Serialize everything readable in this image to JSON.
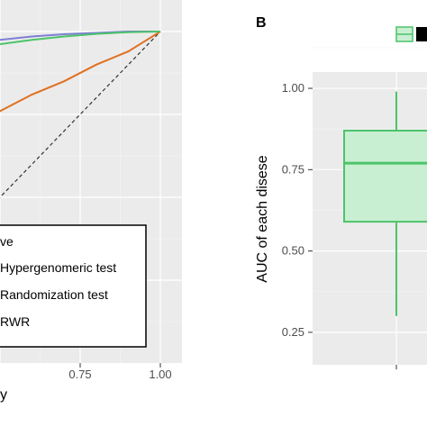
{
  "chart_data": [
    {
      "type": "line",
      "panel_label": "",
      "xlabel": "y",
      "xticks": [
        "0.75",
        "1.00"
      ],
      "xlim": [
        0.0,
        1.0
      ],
      "ylim": [
        0.0,
        1.0
      ],
      "legend": {
        "title": "ve",
        "placement": "bottom-right",
        "entries": [
          "Hypergenomeric test",
          "Randomization test",
          "RWR"
        ]
      },
      "series": [
        {
          "name": "Hypergenomeric test",
          "color": "#7f7fd5",
          "x": [
            0.0,
            0.05,
            0.1,
            0.15,
            0.2,
            0.3,
            0.4,
            0.5,
            0.6,
            0.7,
            0.8,
            0.9,
            0.95,
            1.0
          ],
          "y": [
            0.9,
            0.91,
            0.92,
            0.93,
            0.945,
            0.955,
            0.965,
            0.975,
            0.985,
            0.992,
            0.996,
            1.0,
            1.0,
            1.0
          ]
        },
        {
          "name": "Randomization test",
          "color": "#e07020",
          "x": [
            0.0,
            0.05,
            0.1,
            0.2,
            0.3,
            0.4,
            0.5,
            0.6,
            0.7,
            0.8,
            0.9,
            0.95,
            1.0
          ],
          "y": [
            0.4,
            0.45,
            0.49,
            0.57,
            0.64,
            0.7,
            0.76,
            0.81,
            0.85,
            0.9,
            0.94,
            0.97,
            1.0
          ]
        },
        {
          "name": "RWR",
          "color": "#4cc46a",
          "x": [
            0.0,
            0.02,
            0.05,
            0.1,
            0.15,
            0.2,
            0.3,
            0.4,
            0.5,
            0.6,
            0.7,
            0.8,
            0.9,
            1.0
          ],
          "y": [
            0.84,
            0.845,
            0.86,
            0.885,
            0.9,
            0.915,
            0.935,
            0.95,
            0.962,
            0.975,
            0.985,
            0.993,
            0.998,
            1.0
          ]
        }
      ],
      "reference_line": "diagonal",
      "grid": true
    },
    {
      "type": "box",
      "panel_label": "B",
      "ylabel": "AUC of each disese",
      "yticks": [
        "0.25",
        "0.50",
        "0.75",
        "1.00"
      ],
      "ylim": [
        0.15,
        1.05
      ],
      "box": {
        "color": "#4cc46a",
        "fill": "#c8efd2",
        "whisker_low": 0.3,
        "q1": 0.59,
        "median": 0.77,
        "q3": 0.87,
        "whisker_high": 0.99
      },
      "legend": {
        "placement": "top-right"
      },
      "grid": true
    }
  ]
}
